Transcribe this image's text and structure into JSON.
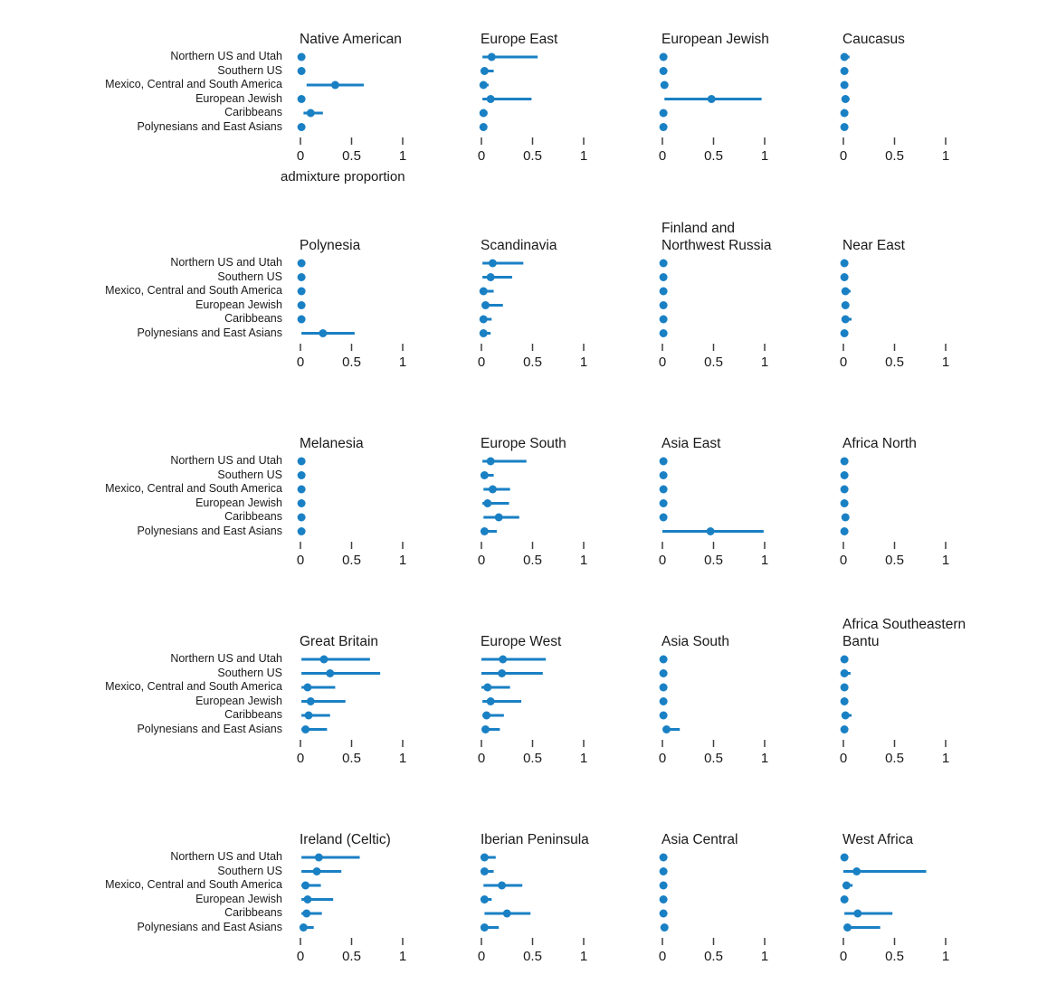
{
  "page": {
    "background": "#ffffff"
  },
  "chart_data": {
    "type": "scatter",
    "subtype": "pointrange-small-multiples",
    "grid": false,
    "legend": "none",
    "accent_color": "#1a80c4",
    "text_color": "#1a1a1a",
    "tick_color": "#404040",
    "xlabel": "admixture proportion",
    "xlim": [
      0,
      1
    ],
    "xticks": [
      0,
      0.5,
      1
    ],
    "xtick_labels": [
      "0",
      "0.5",
      "1"
    ],
    "layout_hint": {
      "rows": 5,
      "cols": 4,
      "category_labels_left_of_each_row": true,
      "xlabel_under_first_panel_only": true
    },
    "categories": [
      "Northern US and Utah",
      "Southern US",
      "Mexico, Central and South America",
      "European Jewish",
      "Caribbeans",
      "Polynesians and East Asians"
    ],
    "panels": [
      {
        "title_lines": [
          "Native American"
        ],
        "points": [
          {
            "lo": 0.0,
            "est": 0.01,
            "hi": 0.02
          },
          {
            "lo": 0.0,
            "est": 0.01,
            "hi": 0.02
          },
          {
            "lo": 0.06,
            "est": 0.34,
            "hi": 0.62
          },
          {
            "lo": 0.0,
            "est": 0.01,
            "hi": 0.02
          },
          {
            "lo": 0.03,
            "est": 0.1,
            "hi": 0.22
          },
          {
            "lo": 0.0,
            "est": 0.01,
            "hi": 0.02
          }
        ]
      },
      {
        "title_lines": [
          "Europe East"
        ],
        "points": [
          {
            "lo": 0.01,
            "est": 0.1,
            "hi": 0.55
          },
          {
            "lo": 0.0,
            "est": 0.03,
            "hi": 0.12
          },
          {
            "lo": 0.0,
            "est": 0.02,
            "hi": 0.07
          },
          {
            "lo": 0.01,
            "est": 0.09,
            "hi": 0.49
          },
          {
            "lo": 0.0,
            "est": 0.02,
            "hi": 0.06
          },
          {
            "lo": 0.0,
            "est": 0.02,
            "hi": 0.03
          }
        ]
      },
      {
        "title_lines": [
          "European Jewish"
        ],
        "points": [
          {
            "lo": 0.0,
            "est": 0.01,
            "hi": 0.02
          },
          {
            "lo": 0.0,
            "est": 0.01,
            "hi": 0.02
          },
          {
            "lo": 0.0,
            "est": 0.02,
            "hi": 0.04
          },
          {
            "lo": 0.02,
            "est": 0.48,
            "hi": 0.97
          },
          {
            "lo": 0.0,
            "est": 0.01,
            "hi": 0.02
          },
          {
            "lo": 0.0,
            "est": 0.01,
            "hi": 0.02
          }
        ]
      },
      {
        "title_lines": [
          "Caucasus"
        ],
        "points": [
          {
            "lo": 0.0,
            "est": 0.01,
            "hi": 0.06
          },
          {
            "lo": 0.0,
            "est": 0.01,
            "hi": 0.02
          },
          {
            "lo": 0.0,
            "est": 0.01,
            "hi": 0.02
          },
          {
            "lo": 0.0,
            "est": 0.02,
            "hi": 0.06
          },
          {
            "lo": 0.0,
            "est": 0.01,
            "hi": 0.02
          },
          {
            "lo": 0.0,
            "est": 0.01,
            "hi": 0.02
          }
        ]
      },
      {
        "title_lines": [
          "Polynesia"
        ],
        "points": [
          {
            "lo": 0.0,
            "est": 0.01,
            "hi": 0.02
          },
          {
            "lo": 0.0,
            "est": 0.01,
            "hi": 0.02
          },
          {
            "lo": 0.0,
            "est": 0.01,
            "hi": 0.02
          },
          {
            "lo": 0.0,
            "est": 0.01,
            "hi": 0.02
          },
          {
            "lo": 0.0,
            "est": 0.01,
            "hi": 0.02
          },
          {
            "lo": 0.01,
            "est": 0.22,
            "hi": 0.53
          }
        ]
      },
      {
        "title_lines": [
          "Scandinavia"
        ],
        "points": [
          {
            "lo": 0.01,
            "est": 0.11,
            "hi": 0.41
          },
          {
            "lo": 0.01,
            "est": 0.09,
            "hi": 0.3
          },
          {
            "lo": 0.0,
            "est": 0.02,
            "hi": 0.12
          },
          {
            "lo": 0.01,
            "est": 0.04,
            "hi": 0.21
          },
          {
            "lo": 0.0,
            "est": 0.02,
            "hi": 0.1
          },
          {
            "lo": 0.0,
            "est": 0.02,
            "hi": 0.09
          }
        ]
      },
      {
        "title_lines": [
          "Finland and",
          "Northwest Russia"
        ],
        "points": [
          {
            "lo": 0.0,
            "est": 0.01,
            "hi": 0.02
          },
          {
            "lo": 0.0,
            "est": 0.01,
            "hi": 0.02
          },
          {
            "lo": 0.0,
            "est": 0.01,
            "hi": 0.02
          },
          {
            "lo": 0.0,
            "est": 0.01,
            "hi": 0.02
          },
          {
            "lo": 0.0,
            "est": 0.01,
            "hi": 0.02
          },
          {
            "lo": 0.0,
            "est": 0.01,
            "hi": 0.02
          }
        ]
      },
      {
        "title_lines": [
          "Near East"
        ],
        "points": [
          {
            "lo": 0.0,
            "est": 0.01,
            "hi": 0.04
          },
          {
            "lo": 0.0,
            "est": 0.01,
            "hi": 0.02
          },
          {
            "lo": 0.0,
            "est": 0.02,
            "hi": 0.07
          },
          {
            "lo": 0.0,
            "est": 0.02,
            "hi": 0.03
          },
          {
            "lo": 0.0,
            "est": 0.02,
            "hi": 0.08
          },
          {
            "lo": 0.0,
            "est": 0.01,
            "hi": 0.02
          }
        ]
      },
      {
        "title_lines": [
          "Melanesia"
        ],
        "points": [
          {
            "lo": 0.0,
            "est": 0.01,
            "hi": 0.02
          },
          {
            "lo": 0.0,
            "est": 0.01,
            "hi": 0.02
          },
          {
            "lo": 0.0,
            "est": 0.01,
            "hi": 0.02
          },
          {
            "lo": 0.0,
            "est": 0.01,
            "hi": 0.02
          },
          {
            "lo": 0.0,
            "est": 0.01,
            "hi": 0.02
          },
          {
            "lo": 0.0,
            "est": 0.01,
            "hi": 0.02
          }
        ]
      },
      {
        "title_lines": [
          "Europe South"
        ],
        "points": [
          {
            "lo": 0.01,
            "est": 0.09,
            "hi": 0.44
          },
          {
            "lo": 0.01,
            "est": 0.03,
            "hi": 0.12
          },
          {
            "lo": 0.02,
            "est": 0.11,
            "hi": 0.28
          },
          {
            "lo": 0.01,
            "est": 0.06,
            "hi": 0.27
          },
          {
            "lo": 0.02,
            "est": 0.17,
            "hi": 0.37
          },
          {
            "lo": 0.01,
            "est": 0.03,
            "hi": 0.15
          }
        ]
      },
      {
        "title_lines": [
          "Asia East"
        ],
        "points": [
          {
            "lo": 0.0,
            "est": 0.01,
            "hi": 0.02
          },
          {
            "lo": 0.0,
            "est": 0.01,
            "hi": 0.02
          },
          {
            "lo": 0.0,
            "est": 0.01,
            "hi": 0.02
          },
          {
            "lo": 0.0,
            "est": 0.01,
            "hi": 0.02
          },
          {
            "lo": 0.0,
            "est": 0.01,
            "hi": 0.02
          },
          {
            "lo": 0.0,
            "est": 0.47,
            "hi": 0.99
          }
        ]
      },
      {
        "title_lines": [
          "Africa North"
        ],
        "points": [
          {
            "lo": 0.0,
            "est": 0.01,
            "hi": 0.02
          },
          {
            "lo": 0.0,
            "est": 0.01,
            "hi": 0.02
          },
          {
            "lo": 0.0,
            "est": 0.01,
            "hi": 0.02
          },
          {
            "lo": 0.0,
            "est": 0.01,
            "hi": 0.02
          },
          {
            "lo": 0.01,
            "est": 0.02,
            "hi": 0.05
          },
          {
            "lo": 0.0,
            "est": 0.01,
            "hi": 0.02
          }
        ]
      },
      {
        "title_lines": [
          "Great Britain"
        ],
        "points": [
          {
            "lo": 0.01,
            "est": 0.23,
            "hi": 0.68
          },
          {
            "lo": 0.01,
            "est": 0.29,
            "hi": 0.78
          },
          {
            "lo": 0.01,
            "est": 0.07,
            "hi": 0.34
          },
          {
            "lo": 0.01,
            "est": 0.1,
            "hi": 0.44
          },
          {
            "lo": 0.01,
            "est": 0.08,
            "hi": 0.29
          },
          {
            "lo": 0.01,
            "est": 0.05,
            "hi": 0.26
          }
        ]
      },
      {
        "title_lines": [
          "Europe West"
        ],
        "points": [
          {
            "lo": 0.0,
            "est": 0.21,
            "hi": 0.63
          },
          {
            "lo": 0.0,
            "est": 0.2,
            "hi": 0.6
          },
          {
            "lo": 0.0,
            "est": 0.06,
            "hi": 0.28
          },
          {
            "lo": 0.01,
            "est": 0.09,
            "hi": 0.39
          },
          {
            "lo": 0.01,
            "est": 0.05,
            "hi": 0.22
          },
          {
            "lo": 0.01,
            "est": 0.04,
            "hi": 0.18
          }
        ]
      },
      {
        "title_lines": [
          "Asia South"
        ],
        "points": [
          {
            "lo": 0.0,
            "est": 0.01,
            "hi": 0.02
          },
          {
            "lo": 0.0,
            "est": 0.01,
            "hi": 0.02
          },
          {
            "lo": 0.0,
            "est": 0.01,
            "hi": 0.02
          },
          {
            "lo": 0.0,
            "est": 0.01,
            "hi": 0.02
          },
          {
            "lo": 0.0,
            "est": 0.01,
            "hi": 0.02
          },
          {
            "lo": 0.01,
            "est": 0.04,
            "hi": 0.17
          }
        ]
      },
      {
        "title_lines": [
          "Africa Southeastern",
          "Bantu"
        ],
        "points": [
          {
            "lo": 0.0,
            "est": 0.01,
            "hi": 0.02
          },
          {
            "lo": 0.01,
            "est": 0.01,
            "hi": 0.07
          },
          {
            "lo": 0.0,
            "est": 0.01,
            "hi": 0.02
          },
          {
            "lo": 0.0,
            "est": 0.01,
            "hi": 0.02
          },
          {
            "lo": 0.01,
            "est": 0.02,
            "hi": 0.08
          },
          {
            "lo": 0.0,
            "est": 0.01,
            "hi": 0.02
          }
        ]
      },
      {
        "title_lines": [
          "Ireland (Celtic)"
        ],
        "points": [
          {
            "lo": 0.01,
            "est": 0.18,
            "hi": 0.58
          },
          {
            "lo": 0.01,
            "est": 0.16,
            "hi": 0.4
          },
          {
            "lo": 0.01,
            "est": 0.05,
            "hi": 0.2
          },
          {
            "lo": 0.01,
            "est": 0.07,
            "hi": 0.32
          },
          {
            "lo": 0.01,
            "est": 0.06,
            "hi": 0.21
          },
          {
            "lo": 0.01,
            "est": 0.03,
            "hi": 0.13
          }
        ]
      },
      {
        "title_lines": [
          "Iberian Peninsula"
        ],
        "points": [
          {
            "lo": 0.01,
            "est": 0.03,
            "hi": 0.14
          },
          {
            "lo": 0.01,
            "est": 0.03,
            "hi": 0.12
          },
          {
            "lo": 0.02,
            "est": 0.2,
            "hi": 0.4
          },
          {
            "lo": 0.01,
            "est": 0.03,
            "hi": 0.1
          },
          {
            "lo": 0.03,
            "est": 0.25,
            "hi": 0.48
          },
          {
            "lo": 0.01,
            "est": 0.03,
            "hi": 0.17
          }
        ]
      },
      {
        "title_lines": [
          "Asia Central"
        ],
        "points": [
          {
            "lo": 0.0,
            "est": 0.01,
            "hi": 0.02
          },
          {
            "lo": 0.0,
            "est": 0.01,
            "hi": 0.02
          },
          {
            "lo": 0.0,
            "est": 0.01,
            "hi": 0.02
          },
          {
            "lo": 0.0,
            "est": 0.01,
            "hi": 0.02
          },
          {
            "lo": 0.0,
            "est": 0.01,
            "hi": 0.02
          },
          {
            "lo": 0.0,
            "est": 0.02,
            "hi": 0.05
          }
        ]
      },
      {
        "title_lines": [
          "West Africa"
        ],
        "points": [
          {
            "lo": 0.0,
            "est": 0.01,
            "hi": 0.02
          },
          {
            "lo": 0.0,
            "est": 0.13,
            "hi": 0.81
          },
          {
            "lo": 0.01,
            "est": 0.03,
            "hi": 0.09
          },
          {
            "lo": 0.0,
            "est": 0.01,
            "hi": 0.02
          },
          {
            "lo": 0.01,
            "est": 0.14,
            "hi": 0.48
          },
          {
            "lo": 0.01,
            "est": 0.04,
            "hi": 0.36
          }
        ]
      }
    ]
  }
}
